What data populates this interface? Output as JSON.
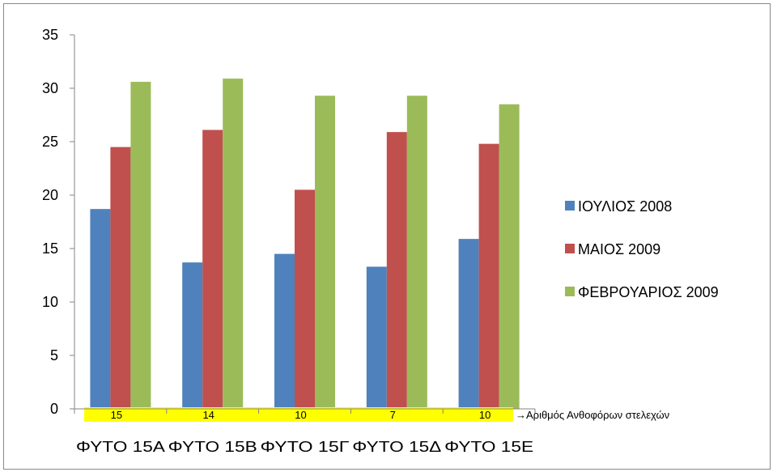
{
  "chart_data": {
    "type": "bar",
    "categories": [
      "ΦΥΤΟ 15Α",
      "ΦΥΤΟ 15Β",
      "ΦΥΤΟ 15Γ",
      "ΦΥΤΟ 15Δ",
      "ΦΥΤΟ 15Ε"
    ],
    "series": [
      {
        "name": "ΙΟΥΛΙΟΣ 2008",
        "color": "#4f81bd",
        "values": [
          18.7,
          13.7,
          14.5,
          13.3,
          15.9
        ]
      },
      {
        "name": "ΜΑΙΟΣ 2009",
        "color": "#c0504d",
        "values": [
          24.5,
          26.1,
          20.5,
          25.9,
          24.8
        ]
      },
      {
        "name": "ΦΕΒΡΟΥΑΡΙΟΣ 2009",
        "color": "#9bbb59",
        "values": [
          30.6,
          30.9,
          29.3,
          29.3,
          28.5
        ]
      }
    ],
    "ylim": [
      0,
      35
    ],
    "yticks": [
      "0",
      "5",
      "10",
      "15",
      "20",
      "25",
      "30",
      "35"
    ],
    "legend_position": "right",
    "grid": false,
    "count_row": {
      "values": [
        "15",
        "14",
        "10",
        "7",
        "10"
      ],
      "background": "#ffff00",
      "note": "→Αριθμός Ανθοφόρων στελεχών"
    }
  }
}
